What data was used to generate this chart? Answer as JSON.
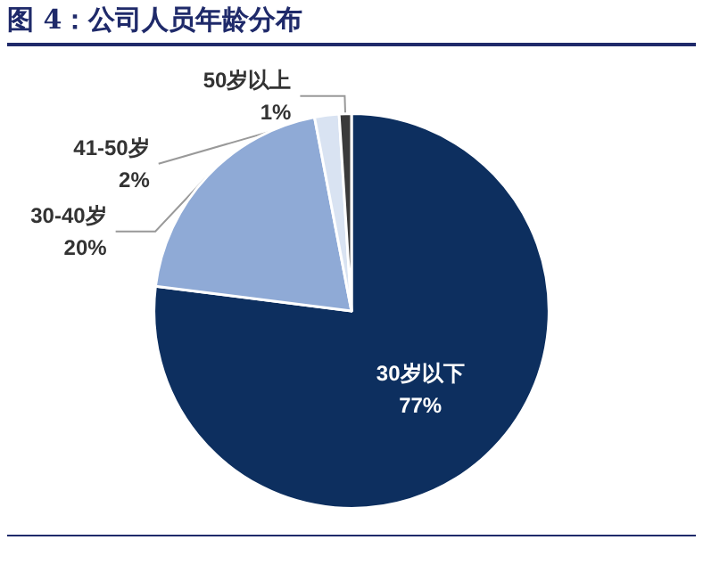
{
  "chart_data": {
    "type": "pie",
    "title": "图 4：公司人员年龄分布",
    "categories": [
      "30岁以下",
      "30-40岁",
      "41-50岁",
      "50岁以上"
    ],
    "values": [
      77,
      20,
      2,
      1
    ],
    "value_labels": [
      "77%",
      "20%",
      "2%",
      "1%"
    ],
    "colors": [
      "#0d2f5f",
      "#8faad6",
      "#d9e3f2",
      "#3a3a3a"
    ],
    "legend": false
  }
}
